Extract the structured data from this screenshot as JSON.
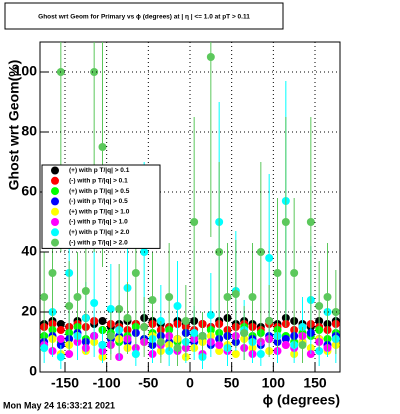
{
  "chart_data": {
    "type": "scatter",
    "title": "Ghost wrt Geom for Primary vs ϕ (degrees) at | η | <= 1.0 at pT > 0.11",
    "x_label": "ϕ (degrees)",
    "y_label": "Ghost wrt Geom(%)",
    "footer": "Mon May 24 16:33:21 2021",
    "xlim": [
      -180,
      180
    ],
    "ylim": [
      0,
      110
    ],
    "xticks": [
      -150,
      -100,
      -50,
      0,
      50,
      100,
      150
    ],
    "yticks": [
      0,
      20,
      40,
      60,
      80,
      100
    ],
    "grid": true,
    "legend": "middle-left",
    "x": [
      -175,
      -165,
      -155,
      -145,
      -135,
      -125,
      -115,
      -105,
      -95,
      -85,
      -75,
      -65,
      -55,
      -45,
      -35,
      -25,
      -15,
      -5,
      5,
      15,
      25,
      35,
      45,
      55,
      65,
      75,
      85,
      95,
      105,
      115,
      125,
      135,
      145,
      155,
      165,
      175
    ],
    "series": [
      {
        "name": "(+) with p T/|q| > 0.1",
        "color": "#000000",
        "values": [
          16,
          17,
          16,
          15,
          17,
          18,
          16,
          17,
          15,
          16,
          17,
          16,
          18,
          17,
          16,
          15,
          17,
          16,
          17,
          16,
          15,
          17,
          18,
          16,
          17,
          16,
          15,
          17,
          16,
          18,
          17,
          16,
          15,
          17,
          16,
          17
        ]
      },
      {
        "name": "(-) with p T/|q| > 0.1",
        "color": "#ff0000",
        "values": [
          15,
          16,
          14,
          15,
          16,
          15,
          17,
          14,
          16,
          15,
          14,
          16,
          15,
          16,
          14,
          15,
          16,
          15,
          14,
          16,
          15,
          16,
          14,
          15,
          16,
          15,
          14,
          16,
          15,
          16,
          14,
          15,
          16,
          15,
          14,
          16
        ]
      },
      {
        "name": "(+) with p T/|q| > 0.5",
        "color": "#00ff00",
        "values": [
          12,
          14,
          10,
          13,
          15,
          11,
          12,
          14,
          13,
          10,
          12,
          15,
          11,
          13,
          12,
          14,
          10,
          13,
          12,
          11,
          14,
          13,
          12,
          10,
          15,
          12,
          13,
          11,
          14,
          12,
          10,
          13,
          12,
          14,
          11,
          13
        ]
      },
      {
        "name": "(-) with p T/|q| > 0.5",
        "color": "#0000ff",
        "values": [
          10,
          12,
          9,
          11,
          13,
          10,
          12,
          9,
          11,
          12,
          10,
          13,
          11,
          9,
          12,
          10,
          11,
          13,
          10,
          12,
          9,
          11,
          12,
          10,
          13,
          11,
          9,
          12,
          10,
          11,
          12,
          10,
          13,
          11,
          9,
          12
        ]
      },
      {
        "name": "(+) with p T/|q| > 1.0",
        "color": "#ffff00",
        "values": [
          8,
          11,
          6,
          9,
          12,
          7,
          10,
          5,
          9,
          11,
          8,
          6,
          10,
          12,
          7,
          9,
          11,
          5,
          8,
          10,
          12,
          7,
          9,
          6,
          11,
          8,
          10,
          7,
          12,
          9,
          6,
          10,
          8,
          11,
          7,
          9
        ]
      },
      {
        "name": "(-) with p T/|q| > 1.0",
        "color": "#ff00ff",
        "values": [
          9,
          7,
          11,
          6,
          10,
          8,
          12,
          7,
          9,
          5,
          11,
          8,
          10,
          6,
          9,
          12,
          7,
          8,
          11,
          6,
          10,
          9,
          7,
          12,
          8,
          6,
          10,
          11,
          7,
          9,
          8,
          12,
          6,
          10,
          8,
          11
        ]
      },
      {
        "name": "(+) with p T/|q| > 2.0",
        "color": "#00ffff",
        "values": [
          8,
          20,
          5,
          33,
          12,
          18,
          23,
          9,
          21,
          14,
          28,
          6,
          40,
          11,
          17,
          7,
          22,
          10,
          13,
          5,
          19,
          50,
          8,
          27,
          14,
          10,
          6,
          38,
          12,
          57,
          9,
          15,
          24,
          7,
          20,
          11
        ],
        "errors": [
          5,
          15,
          4,
          25,
          8,
          12,
          18,
          6,
          15,
          10,
          20,
          4,
          30,
          8,
          12,
          5,
          15,
          7,
          9,
          4,
          14,
          40,
          6,
          20,
          10,
          7,
          4,
          28,
          9,
          40,
          6,
          10,
          18,
          5,
          15,
          8
        ]
      },
      {
        "name": "(-) with p T/|q| > 2.0",
        "color": "#5cc85c",
        "values": [
          25,
          33,
          100,
          22,
          25,
          27,
          100,
          75,
          12,
          21,
          18,
          33,
          15,
          24,
          10,
          25,
          8,
          17,
          50,
          12,
          105,
          40,
          25,
          26,
          13,
          25,
          40,
          17,
          33,
          50,
          33,
          9,
          50,
          22,
          25,
          20
        ],
        "errors": [
          15,
          25,
          60,
          15,
          15,
          18,
          60,
          40,
          8,
          15,
          12,
          25,
          10,
          16,
          7,
          18,
          6,
          12,
          35,
          8,
          60,
          30,
          18,
          18,
          9,
          18,
          30,
          12,
          25,
          35,
          25,
          6,
          35,
          15,
          18,
          14
        ]
      }
    ]
  }
}
